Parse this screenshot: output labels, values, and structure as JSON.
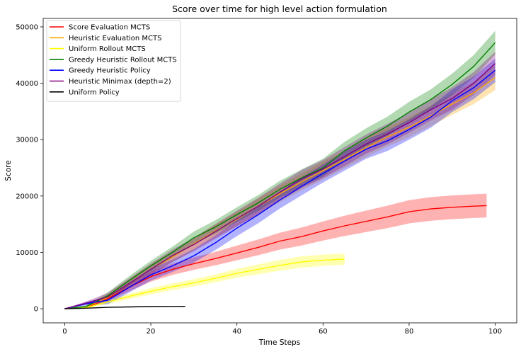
{
  "chart_data": {
    "type": "line",
    "title": "Score over time for high level action formulation",
    "xlabel": "Time Steps",
    "ylabel": "Score",
    "xlim": [
      -5,
      105
    ],
    "ylim": [
      -2500,
      51500
    ],
    "xticks": [
      0,
      20,
      40,
      60,
      80,
      100
    ],
    "yticks": [
      0,
      10000,
      20000,
      30000,
      40000,
      50000
    ],
    "grid": false,
    "legend_position": "top-left",
    "series": [
      {
        "name": "Score Evaluation MCTS",
        "color": "#ff0000",
        "x": [
          0,
          5,
          10,
          15,
          20,
          25,
          30,
          35,
          40,
          45,
          50,
          55,
          60,
          65,
          70,
          75,
          80,
          85,
          90,
          95,
          98
        ],
        "y": [
          0,
          200,
          1800,
          3800,
          5700,
          7000,
          8000,
          8900,
          9900,
          10900,
          12000,
          12800,
          13800,
          14700,
          15500,
          16300,
          17200,
          17700,
          18000,
          18200,
          18300
        ],
        "band": [
          0,
          150,
          500,
          700,
          900,
          1000,
          1100,
          1200,
          1300,
          1400,
          1500,
          1600,
          1700,
          1800,
          1900,
          2000,
          2050,
          2100,
          2100,
          2100,
          2100
        ]
      },
      {
        "name": "Heuristic Evaluation MCTS",
        "color": "#ffa500",
        "x": [
          0,
          5,
          10,
          15,
          20,
          25,
          30,
          35,
          40,
          45,
          50,
          55,
          60,
          65,
          70,
          75,
          80,
          85,
          90,
          95,
          100
        ],
        "y": [
          0,
          300,
          2000,
          4500,
          7000,
          9200,
          11500,
          13800,
          15900,
          18200,
          20400,
          22500,
          24500,
          26500,
          28600,
          30500,
          32200,
          34200,
          36300,
          38300,
          41000
        ],
        "band": [
          0,
          200,
          600,
          800,
          900,
          1000,
          1100,
          1200,
          1300,
          1400,
          1500,
          1500,
          1600,
          1600,
          1700,
          1700,
          1800,
          1800,
          1900,
          2000,
          2200
        ]
      },
      {
        "name": "Uniform Rollout MCTS",
        "color": "#ffff00",
        "x": [
          0,
          5,
          10,
          15,
          20,
          25,
          30,
          35,
          40,
          45,
          50,
          55,
          60,
          65
        ],
        "y": [
          0,
          200,
          1200,
          2200,
          3100,
          3900,
          4600,
          5400,
          6300,
          7000,
          7700,
          8300,
          8600,
          8800
        ],
        "band": [
          0,
          100,
          350,
          450,
          550,
          600,
          650,
          700,
          800,
          900,
          950,
          1000,
          1000,
          1000
        ]
      },
      {
        "name": "Greedy Heuristic Rollout MCTS",
        "color": "#008000",
        "x": [
          0,
          5,
          10,
          15,
          20,
          25,
          30,
          35,
          40,
          45,
          50,
          55,
          60,
          65,
          70,
          75,
          80,
          85,
          90,
          95,
          100
        ],
        "y": [
          0,
          400,
          2300,
          5000,
          7600,
          10000,
          12600,
          14500,
          16700,
          18800,
          21200,
          23200,
          25000,
          28000,
          30300,
          32400,
          34900,
          37100,
          39800,
          43000,
          47200
        ],
        "band": [
          0,
          200,
          600,
          800,
          900,
          1000,
          1100,
          1200,
          1300,
          1400,
          1500,
          1500,
          1600,
          1600,
          1700,
          1700,
          1800,
          1800,
          1900,
          2000,
          2100
        ]
      },
      {
        "name": "Greedy Heuristic Policy",
        "color": "#0000ff",
        "x": [
          0,
          5,
          10,
          15,
          20,
          25,
          30,
          35,
          40,
          45,
          50,
          55,
          60,
          65,
          70,
          75,
          80,
          85,
          90,
          95,
          100
        ],
        "y": [
          0,
          900,
          1500,
          3800,
          6000,
          7600,
          9400,
          11700,
          14300,
          16700,
          19300,
          21700,
          24000,
          26200,
          28300,
          29800,
          31800,
          34000,
          36900,
          39200,
          42300
        ],
        "band": [
          0,
          300,
          700,
          900,
          1000,
          1100,
          1200,
          1300,
          1400,
          1500,
          1500,
          1600,
          1600,
          1700,
          1700,
          1800,
          1800,
          1900,
          2000,
          2000,
          2100
        ]
      },
      {
        "name": "Heuristic Minimax (depth=2)",
        "color": "#800080",
        "x": [
          0,
          5,
          10,
          15,
          20,
          25,
          30,
          35,
          40,
          45,
          50,
          55,
          60,
          65,
          70,
          75,
          80,
          85,
          90,
          95,
          100
        ],
        "y": [
          0,
          1000,
          2100,
          4500,
          7000,
          9400,
          11400,
          13700,
          16000,
          18200,
          20700,
          23000,
          24800,
          27000,
          29200,
          31000,
          33000,
          35300,
          37300,
          40000,
          43500
        ],
        "band": [
          0,
          300,
          700,
          900,
          1000,
          1100,
          1200,
          1300,
          1400,
          1500,
          1500,
          1600,
          1600,
          1700,
          1700,
          1800,
          1800,
          1900,
          2000,
          2000,
          2100
        ]
      },
      {
        "name": "Uniform Policy",
        "color": "#000000",
        "x": [
          0,
          5,
          10,
          15,
          20,
          25,
          28
        ],
        "y": [
          0,
          100,
          250,
          330,
          390,
          410,
          420
        ],
        "band": [
          0,
          0,
          0,
          0,
          0,
          0,
          0
        ]
      }
    ]
  }
}
